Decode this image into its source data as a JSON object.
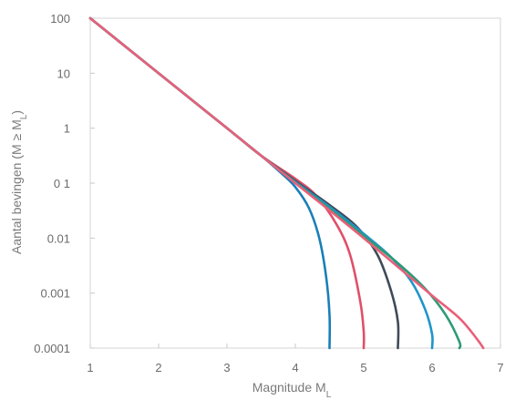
{
  "chart_data": {
    "type": "line",
    "title": "",
    "xlabel": "Magnitude M",
    "xlabel_sub": "L",
    "ylabel": "Aantal bevingen (M ≥ M",
    "ylabel_sub": "L",
    "ylabel_end": ")",
    "xlim": [
      1,
      7
    ],
    "ylim": [
      0.0001,
      100
    ],
    "yscale": "log",
    "grid": false,
    "x_ticks": [
      1,
      2,
      3,
      4,
      5,
      6,
      7
    ],
    "x_tick_labels": [
      "1",
      "2",
      "3",
      "4",
      "5",
      "6",
      "7"
    ],
    "y_ticks": [
      100,
      10,
      1,
      0.1,
      0.01,
      0.001,
      0.0001
    ],
    "y_tick_labels": [
      "100",
      "10",
      "1",
      "0 1",
      "0.01",
      "0.001",
      "0.0001"
    ],
    "series": [
      {
        "color": "#1a7fb8",
        "x": [
          1.0,
          2.0,
          3.0,
          3.5,
          3.8,
          4.0,
          4.2,
          4.35,
          4.45,
          4.5,
          4.5
        ],
        "y": [
          100,
          10,
          1,
          0.316,
          0.15,
          0.085,
          0.035,
          0.01,
          0.002,
          0.0004,
          0.0001
        ]
      },
      {
        "color": "#e0506a",
        "x": [
          1.0,
          3.0,
          3.5,
          4.0,
          4.3,
          4.6,
          4.8,
          4.95,
          5.0,
          5.0
        ],
        "y": [
          100,
          1,
          0.316,
          0.12,
          0.06,
          0.018,
          0.005,
          0.0007,
          0.0002,
          0.0001
        ]
      },
      {
        "color": "#404a58",
        "x": [
          1.0,
          3.0,
          3.5,
          4.0,
          4.5,
          4.9,
          5.2,
          5.4,
          5.5,
          5.5
        ],
        "y": [
          100,
          1,
          0.316,
          0.11,
          0.04,
          0.016,
          0.005,
          0.0011,
          0.0003,
          0.0001
        ]
      },
      {
        "color": "#1f95c9",
        "x": [
          1.0,
          3.0,
          3.5,
          4.0,
          4.5,
          5.0,
          5.4,
          5.7,
          5.9,
          6.0,
          6.0
        ],
        "y": [
          100,
          1,
          0.316,
          0.105,
          0.037,
          0.012,
          0.0045,
          0.0016,
          0.0005,
          0.00018,
          0.0001
        ]
      },
      {
        "color": "#2e9a76",
        "x": [
          1.0,
          3.0,
          3.5,
          4.0,
          4.5,
          5.0,
          5.5,
          5.9,
          6.2,
          6.4,
          6.4
        ],
        "y": [
          100,
          1,
          0.316,
          0.102,
          0.034,
          0.011,
          0.0035,
          0.0012,
          0.0004,
          0.00013,
          0.0001
        ]
      },
      {
        "color": "#e8607a",
        "x": [
          1.0,
          3.0,
          3.5,
          4.0,
          4.5,
          5.0,
          5.5,
          6.0,
          6.4,
          6.65,
          6.75
        ],
        "y": [
          100,
          1,
          0.316,
          0.1,
          0.032,
          0.01,
          0.003,
          0.0009,
          0.00035,
          0.00015,
          0.0001
        ]
      }
    ]
  }
}
